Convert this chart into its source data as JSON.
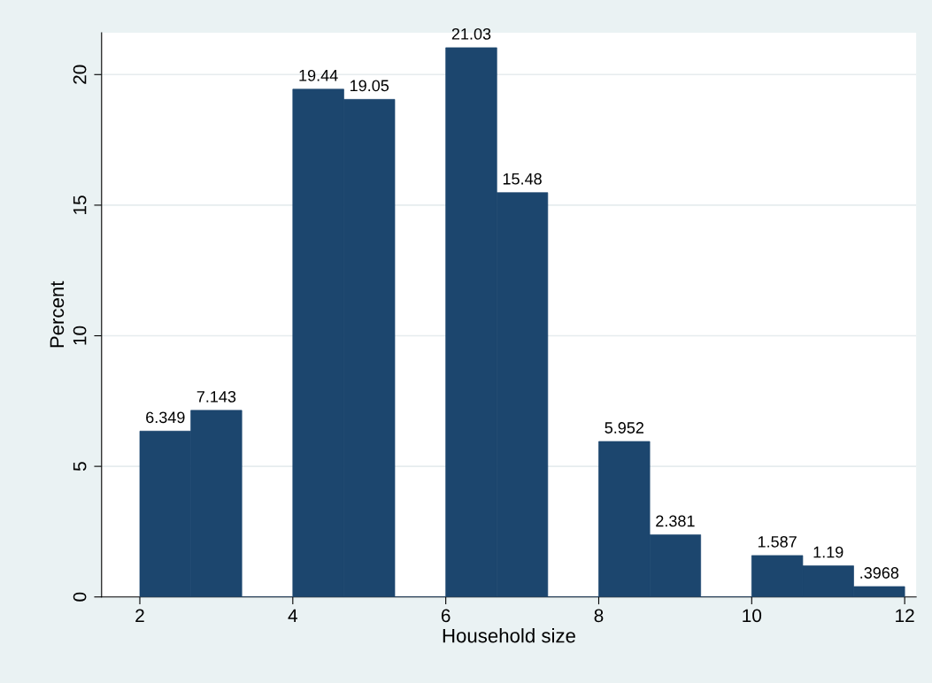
{
  "chart_data": {
    "type": "histogram",
    "xlabel": "Household size",
    "ylabel": "Percent",
    "bins": [
      2,
      2.667,
      3.333,
      4,
      4.667,
      5.333,
      6,
      6.667,
      7.333,
      8,
      8.667,
      9.333,
      10,
      10.667,
      11.333,
      12
    ],
    "values": [
      6.349,
      7.143,
      0,
      19.44,
      19.05,
      0,
      21.03,
      15.48,
      0,
      5.952,
      2.381,
      0,
      1.587,
      1.19,
      0.3968
    ],
    "value_labels": [
      "6.349",
      "7.143",
      null,
      "19.44",
      "19.05",
      null,
      "21.03",
      "15.48",
      null,
      "5.952",
      "2.381",
      null,
      "1.587",
      "1.19",
      ".3968"
    ],
    "color": "#1c466e",
    "xlim": [
      1.5,
      12.15
    ],
    "ylim": [
      0,
      21.6
    ],
    "xticks": [
      2,
      4,
      6,
      8,
      10,
      12
    ],
    "yticks": [
      0,
      5,
      10,
      15,
      20
    ],
    "grid": "y",
    "legend": false
  }
}
